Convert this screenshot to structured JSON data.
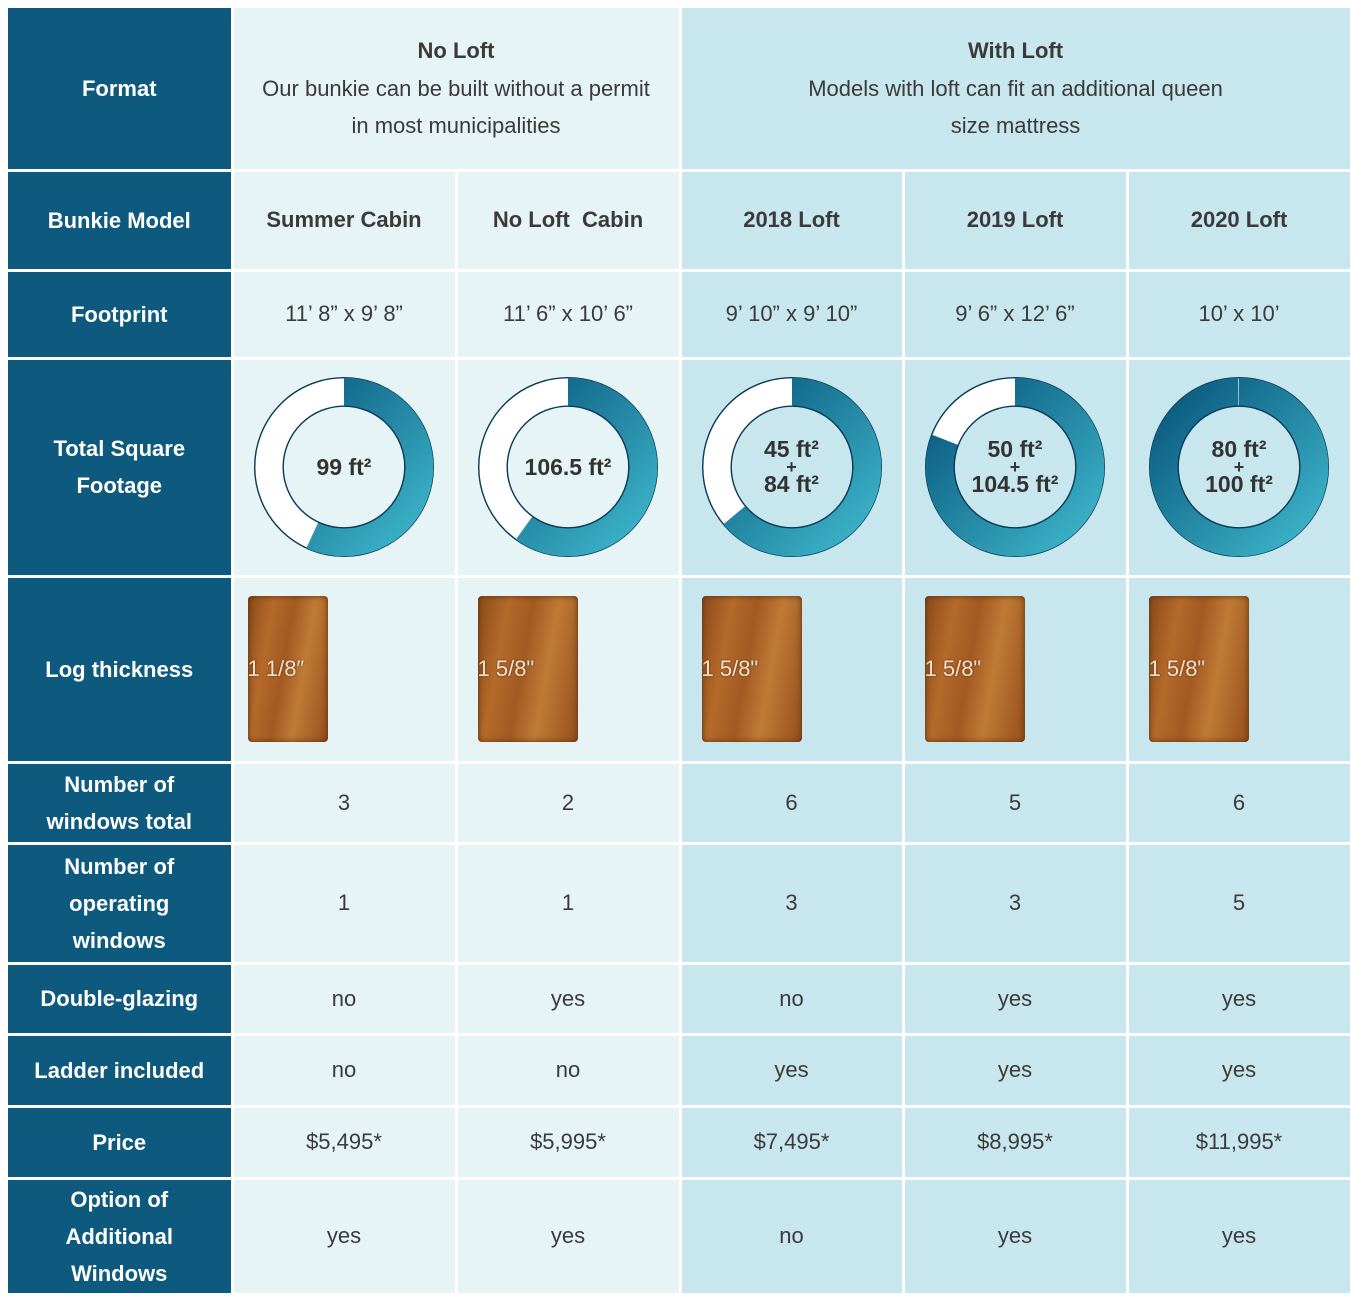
{
  "table": {
    "format": {
      "label": "Format",
      "groups": [
        {
          "title": "No Loft",
          "description": "Our bunkie can be built without a permit in most municipalities"
        },
        {
          "title": "With Loft",
          "description": "Models with loft can fit an additional queen size mattress"
        }
      ]
    },
    "rows": [
      {
        "label": "Bunkie Model",
        "cells": [
          "Summer Cabin",
          "No Loft  Cabin",
          "2018 Loft",
          "2019 Loft",
          "2020 Loft"
        ]
      },
      {
        "label": "Footprint",
        "cells": [
          "11’ 8” x 9’ 8”",
          "11’ 6” x 10’ 6”",
          "9’ 10” x 9’ 10”",
          "9’ 6” x 12’ 6”",
          "10’ x 10’"
        ]
      },
      {
        "label": "Total Square Footage",
        "cells": [
          [
            "99 ft²"
          ],
          [
            "106.5 ft²"
          ],
          [
            "45 ft²",
            "+",
            "84 ft²"
          ],
          [
            "50 ft²",
            "+",
            "104.5 ft²"
          ],
          [
            "80 ft²",
            "+",
            "100 ft²"
          ]
        ]
      },
      {
        "label": "Log thickness",
        "cells": [
          "1 1/8″",
          "1 5/8\"",
          "1 5/8\"",
          "1 5/8\"",
          "1 5/8\""
        ]
      },
      {
        "label": "Number of windows total",
        "cells": [
          3,
          2,
          6,
          5,
          6
        ]
      },
      {
        "label": "Number of operating windows",
        "cells": [
          1,
          1,
          3,
          3,
          5
        ]
      },
      {
        "label": "Double-glazing",
        "cells": [
          "no",
          "yes",
          "no",
          "yes",
          "yes"
        ]
      },
      {
        "label": "Ladder included",
        "cells": [
          "no",
          "no",
          "yes",
          "yes",
          "yes"
        ]
      },
      {
        "label": "Price",
        "cells": [
          "$5,495*",
          "$5,995*",
          "$7,495*",
          "$8,995*",
          "$11,995*"
        ]
      },
      {
        "label": "Option of Additional Windows",
        "cells": [
          "yes",
          "yes",
          "no",
          "yes",
          "yes"
        ]
      }
    ]
  }
}
